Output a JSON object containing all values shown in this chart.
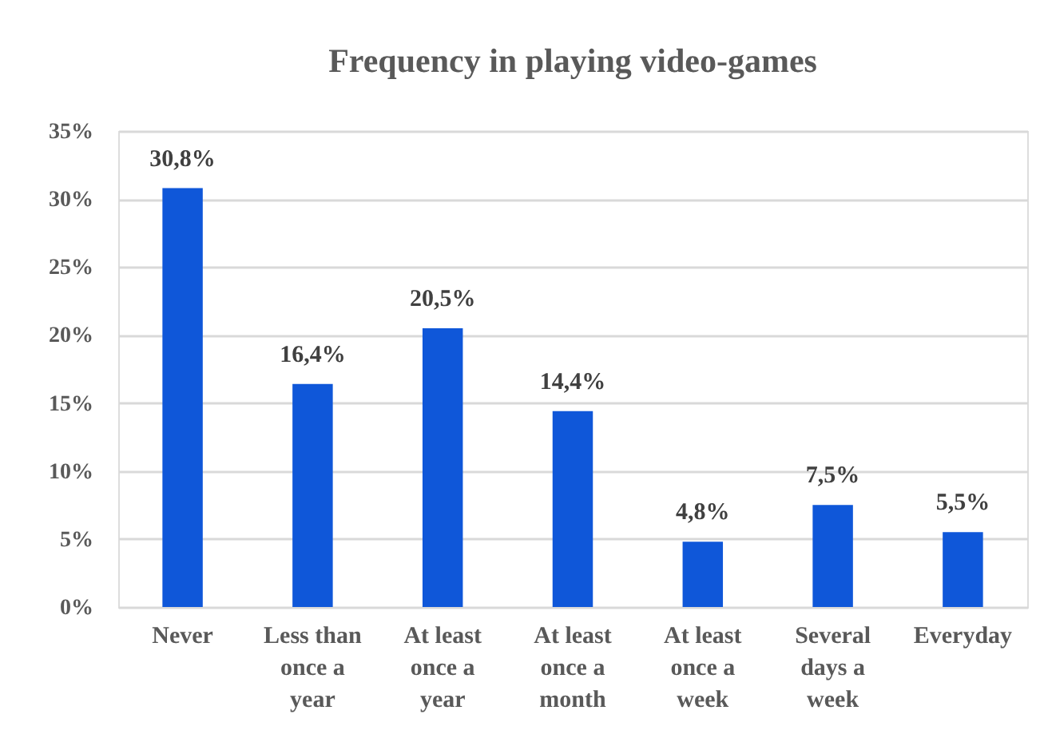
{
  "chart_data": {
    "type": "bar",
    "title": "Frequency in playing video-games",
    "categories": [
      "Never",
      "Less than once a year",
      "At least once a year",
      "At least once a month",
      "At least once a week",
      "Several days a week",
      "Everyday"
    ],
    "values": [
      30.8,
      16.4,
      20.5,
      14.4,
      4.8,
      7.5,
      5.5
    ],
    "color": "#0f57d9",
    "value_labels": [
      "30,8%",
      "16,4%",
      "20,5%",
      "14,4%",
      "4,8%",
      "7,5%",
      "5,5%"
    ],
    "ylim": [
      0,
      35
    ],
    "yticks": [
      {
        "value": 0,
        "label": "0%"
      },
      {
        "value": 5,
        "label": "5%"
      },
      {
        "value": 10,
        "label": "10%"
      },
      {
        "value": 15,
        "label": "15%"
      },
      {
        "value": 20,
        "label": "20%"
      },
      {
        "value": 25,
        "label": "25%"
      },
      {
        "value": 30,
        "label": "30%"
      },
      {
        "value": 35,
        "label": "35%"
      }
    ],
    "grid": "y"
  }
}
